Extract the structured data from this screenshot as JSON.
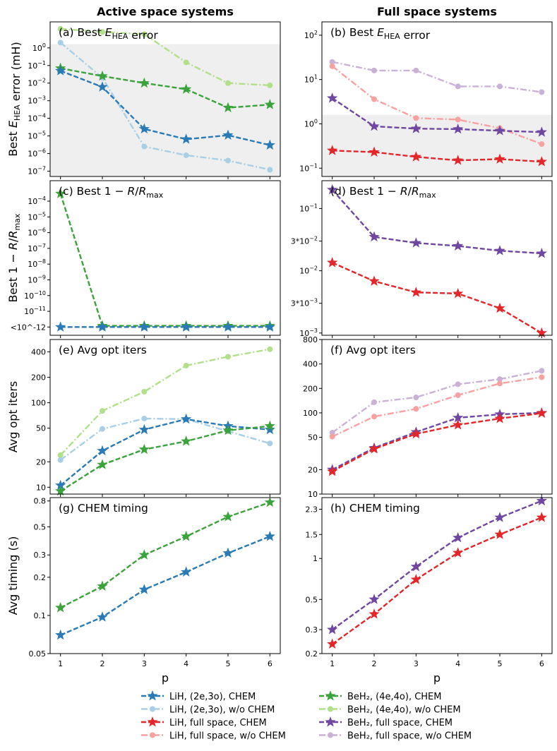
{
  "column_titles": [
    "Active space systems",
    "Full space systems"
  ],
  "x_label": "p",
  "x_ticks": [
    1,
    2,
    3,
    4,
    5,
    6
  ],
  "series_styles": {
    "LiH_active_chem": {
      "color": "#2a7ab5",
      "dash": "dashed",
      "marker": "star"
    },
    "LiH_active_wo": {
      "color": "#a8cfe5",
      "dash": "dashdot",
      "marker": "circle"
    },
    "LiH_full_chem": {
      "color": "#e2262a",
      "dash": "dashed",
      "marker": "star"
    },
    "LiH_full_wo": {
      "color": "#f7a1a1",
      "dash": "dashdot",
      "marker": "circle"
    },
    "BeH2_active_chem": {
      "color": "#3ca33c",
      "dash": "dashed",
      "marker": "star"
    },
    "BeH2_active_wo": {
      "color": "#b2df8a",
      "dash": "dashdot",
      "marker": "circle"
    },
    "BeH2_full_chem": {
      "color": "#7047a0",
      "dash": "dashed",
      "marker": "star"
    },
    "BeH2_full_wo": {
      "color": "#cab1d6",
      "dash": "dashdot",
      "marker": "circle"
    }
  },
  "legend": [
    {
      "key": "LiH_active_chem",
      "label": "LiH, (2e,3o), CHEM"
    },
    {
      "key": "BeH2_active_chem",
      "label": "BeH₂, (4e,4o), CHEM"
    },
    {
      "key": "LiH_active_wo",
      "label": "LiH, (2e,3o), w/o CHEM"
    },
    {
      "key": "BeH2_active_wo",
      "label": "BeH₂, (4e,4o), w/o CHEM"
    },
    {
      "key": "LiH_full_chem",
      "label": "LiH, full space, CHEM"
    },
    {
      "key": "BeH2_full_chem",
      "label": "BeH₂, full space, CHEM"
    },
    {
      "key": "LiH_full_wo",
      "label": "LiH, full space, w/o CHEM"
    },
    {
      "key": "BeH2_full_wo",
      "label": "BeH₂, full space, w/o CHEM"
    }
  ],
  "chart_data": [
    {
      "id": "a",
      "type": "line",
      "title": "(a) Best E_HEA error",
      "ylabel": "Best E_HEA error (mH)",
      "yscale": "log",
      "ylim": [
        5e-08,
        30
      ],
      "shade_max": 1.6,
      "yticks": [
        {
          "v": 1e-07,
          "label": "10^-7"
        },
        {
          "v": 1e-06,
          "label": "10^-6"
        },
        {
          "v": 1e-05,
          "label": "10^-5"
        },
        {
          "v": 0.0001,
          "label": "10^-4"
        },
        {
          "v": 0.001,
          "label": "10^-3"
        },
        {
          "v": 0.01,
          "label": "10^-2"
        },
        {
          "v": 0.1,
          "label": "10^-1"
        },
        {
          "v": 1,
          "label": "10^0"
        }
      ],
      "x": [
        1,
        2,
        3,
        4,
        5,
        6
      ],
      "series": [
        {
          "key": "BeH2_active_wo",
          "values": [
            12,
            8,
            6,
            0.15,
            0.01,
            0.0075
          ]
        },
        {
          "key": "LiH_active_wo",
          "values": [
            2,
            0.02,
            2.5e-06,
            8e-07,
            4e-07,
            1.2e-07
          ]
        },
        {
          "key": "BeH2_active_chem",
          "values": [
            0.07,
            0.025,
            0.01,
            0.0045,
            0.0004,
            0.0006
          ]
        },
        {
          "key": "LiH_active_chem",
          "values": [
            0.05,
            0.006,
            2.5e-05,
            6.5e-06,
            1.1e-05,
            3e-06
          ]
        }
      ]
    },
    {
      "id": "b",
      "type": "line",
      "title": "(b) Best E_HEA error",
      "ylabel": "",
      "yscale": "log",
      "ylim": [
        0.065,
        200
      ],
      "shade_max": 1.6,
      "yticks": [
        {
          "v": 0.1,
          "label": "10^-1"
        },
        {
          "v": 1,
          "label": "10^0"
        },
        {
          "v": 10,
          "label": "10^1"
        },
        {
          "v": 100,
          "label": "10^2"
        }
      ],
      "x": [
        1,
        2,
        3,
        4,
        5,
        6
      ],
      "series": [
        {
          "key": "BeH2_full_wo",
          "values": [
            25,
            16,
            16,
            7,
            7,
            5.2
          ]
        },
        {
          "key": "LiH_full_wo",
          "values": [
            20,
            3.6,
            1.35,
            1.25,
            0.8,
            0.35
          ]
        },
        {
          "key": "BeH2_full_chem",
          "values": [
            3.8,
            0.88,
            0.78,
            0.76,
            0.7,
            0.65
          ]
        },
        {
          "key": "LiH_full_chem",
          "values": [
            0.25,
            0.23,
            0.18,
            0.15,
            0.16,
            0.14
          ]
        }
      ]
    },
    {
      "id": "c",
      "type": "line",
      "title": "(c) Best 1 − R/R_max",
      "ylabel": "Best 1 − R/R_max",
      "yscale": "log",
      "ylim": [
        3e-13,
        0.002
      ],
      "yticks": [
        {
          "v": 1e-12,
          "label": "<10^-12",
          "lt": true
        },
        {
          "v": 1e-11,
          "label": "10^-11"
        },
        {
          "v": 1e-10,
          "label": "10^-10"
        },
        {
          "v": 1e-09,
          "label": "10^-9"
        },
        {
          "v": 1e-08,
          "label": "10^-8"
        },
        {
          "v": 1e-07,
          "label": "10^-7"
        },
        {
          "v": 1e-06,
          "label": "10^-6"
        },
        {
          "v": 1e-05,
          "label": "10^-5"
        },
        {
          "v": 0.0001,
          "label": "10^-4"
        }
      ],
      "x": [
        1,
        2,
        3,
        4,
        5,
        6
      ],
      "series": [
        {
          "key": "BeH2_active_chem",
          "values": [
            0.0003,
            1.2e-12,
            1.2e-12,
            1.2e-12,
            1.2e-12,
            1.2e-12
          ]
        },
        {
          "key": "LiH_active_chem",
          "values": [
            1e-12,
            1e-12,
            1e-12,
            1e-12,
            1e-12,
            1e-12
          ]
        }
      ]
    },
    {
      "id": "d",
      "type": "line",
      "title": "(d) Best 1 − R/R_max",
      "ylabel": "",
      "yscale": "log",
      "ylim": [
        0.00092,
        0.28
      ],
      "yticks": [
        {
          "v": 0.001,
          "label": "10^-3"
        },
        {
          "v": 0.003,
          "label": "3*10^-3"
        },
        {
          "v": 0.01,
          "label": "10^-2"
        },
        {
          "v": 0.03,
          "label": "3*10^-2"
        },
        {
          "v": 0.1,
          "label": "10^-1"
        }
      ],
      "x": [
        1,
        2,
        3,
        4,
        5,
        6
      ],
      "series": [
        {
          "key": "BeH2_full_chem",
          "values": [
            0.2,
            0.035,
            0.028,
            0.025,
            0.021,
            0.019
          ]
        },
        {
          "key": "LiH_full_chem",
          "values": [
            0.0135,
            0.0068,
            0.0045,
            0.0043,
            0.0025,
            0.001
          ]
        }
      ]
    },
    {
      "id": "e",
      "type": "line",
      "title": "(e) Avg opt iters",
      "ylabel": "Avg opt iters",
      "yscale": "log",
      "ylim": [
        8.3,
        560
      ],
      "yticks": [
        {
          "v": 10,
          "label": "10"
        },
        {
          "v": 20,
          "label": "20"
        },
        {
          "v": 50,
          "label": "50"
        },
        {
          "v": 100,
          "label": "100"
        },
        {
          "v": 200,
          "label": "200"
        },
        {
          "v": 400,
          "label": "400"
        }
      ],
      "x": [
        1,
        2,
        3,
        4,
        5,
        6
      ],
      "series": [
        {
          "key": "BeH2_active_wo",
          "values": [
            24,
            80,
            135,
            275,
            350,
            430
          ]
        },
        {
          "key": "LiH_active_wo",
          "values": [
            21,
            49,
            65,
            64,
            46,
            33
          ]
        },
        {
          "key": "LiH_active_chem",
          "values": [
            10.5,
            27,
            48,
            64,
            53,
            48
          ]
        },
        {
          "key": "BeH2_active_chem",
          "values": [
            9,
            18.5,
            28,
            35,
            47,
            53
          ]
        }
      ]
    },
    {
      "id": "f",
      "type": "line",
      "title": "(f) Avg opt iters",
      "ylabel": "",
      "yscale": "log",
      "ylim": [
        10,
        800
      ],
      "yticks": [
        {
          "v": 10,
          "label": "10"
        },
        {
          "v": 20,
          "label": "20"
        },
        {
          "v": 50,
          "label": "50"
        },
        {
          "v": 100,
          "label": "100"
        },
        {
          "v": 200,
          "label": "200"
        },
        {
          "v": 400,
          "label": "400"
        },
        {
          "v": 800,
          "label": "800"
        }
      ],
      "x": [
        1,
        2,
        3,
        4,
        5,
        6
      ],
      "series": [
        {
          "key": "BeH2_full_wo",
          "values": [
            57,
            135,
            155,
            225,
            260,
            330
          ]
        },
        {
          "key": "LiH_full_wo",
          "values": [
            51,
            90,
            112,
            165,
            230,
            275
          ]
        },
        {
          "key": "BeH2_full_chem",
          "values": [
            20,
            37,
            58,
            87,
            96,
            100
          ]
        },
        {
          "key": "LiH_full_chem",
          "values": [
            19,
            36,
            55,
            71,
            85,
            99
          ]
        }
      ]
    },
    {
      "id": "g",
      "type": "line",
      "title": "(g) CHEM timing",
      "ylabel": "Avg timing (s)",
      "yscale": "log",
      "ylim": [
        0.05,
        0.85
      ],
      "yticks": [
        {
          "v": 0.05,
          "label": "0.05"
        },
        {
          "v": 0.1,
          "label": "0.1"
        },
        {
          "v": 0.2,
          "label": "0.2"
        },
        {
          "v": 0.3,
          "label": "0.3"
        },
        {
          "v": 0.5,
          "label": "0.5"
        },
        {
          "v": 0.8,
          "label": "0.8"
        }
      ],
      "x": [
        1,
        2,
        3,
        4,
        5,
        6
      ],
      "series": [
        {
          "key": "BeH2_active_chem",
          "values": [
            0.115,
            0.17,
            0.3,
            0.42,
            0.6,
            0.78
          ]
        },
        {
          "key": "LiH_active_chem",
          "values": [
            0.07,
            0.097,
            0.16,
            0.22,
            0.31,
            0.42
          ]
        }
      ]
    },
    {
      "id": "h",
      "type": "line",
      "title": "(h) CHEM timing",
      "ylabel": "",
      "yscale": "log",
      "ylim": [
        0.2,
        2.8
      ],
      "yticks": [
        {
          "v": 0.2,
          "label": "0.2"
        },
        {
          "v": 0.3,
          "label": "0.3"
        },
        {
          "v": 0.5,
          "label": "0.5"
        },
        {
          "v": 1,
          "label": "1"
        },
        {
          "v": 1.5,
          "label": "1.5"
        },
        {
          "v": 2.3,
          "label": "2.3"
        }
      ],
      "x": [
        1,
        2,
        3,
        4,
        5,
        6
      ],
      "series": [
        {
          "key": "BeH2_full_chem",
          "values": [
            0.3,
            0.5,
            0.87,
            1.42,
            2.0,
            2.65
          ]
        },
        {
          "key": "LiH_full_chem",
          "values": [
            0.235,
            0.39,
            0.7,
            1.1,
            1.5,
            2.0
          ]
        }
      ]
    }
  ]
}
